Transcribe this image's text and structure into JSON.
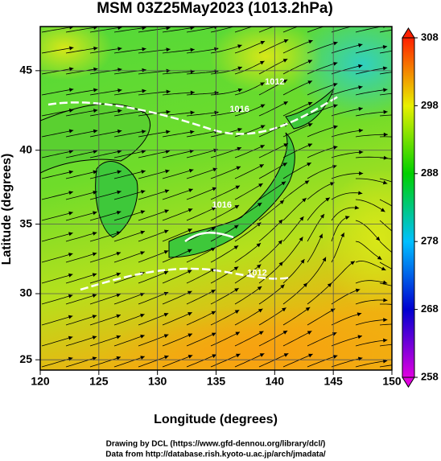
{
  "chart_data": {
    "type": "map",
    "title": "MSM 03Z25May2023 (1013.2hPa)",
    "x_label": "Longitude (degrees)",
    "y_label": "Latitude  (degrees)",
    "projection": "mercator",
    "xlim": [
      120,
      150
    ],
    "xticks": [
      120,
      125,
      130,
      135,
      140,
      145,
      150
    ],
    "ylim": [
      24.2,
      47.6
    ],
    "yticks": [
      25,
      30,
      35,
      40,
      45
    ],
    "grid": true,
    "colorbar": {
      "lim": [
        258,
        308
      ],
      "ticks": [
        258,
        268,
        278,
        288,
        298,
        308
      ],
      "colors": [
        "#e000e0",
        "#0000d0",
        "#00c0ff",
        "#00d000",
        "#e8f000",
        "#ff2000"
      ]
    },
    "contour_labels": [
      {
        "text": "1012",
        "lon": 138.5,
        "lat": 31.5
      },
      {
        "text": "1016",
        "lon": 137,
        "lat": 42.6
      },
      {
        "text": "1012",
        "lon": 140,
        "lat": 44.3
      },
      {
        "text": "1016",
        "lon": 135.5,
        "lat": 36.3
      }
    ],
    "footer": [
      "Drawing by DCL (https://www.gfd-dennou.org/library/dcl/)",
      "Data from http://database.rish.kyoto-u.ac.jp/arch/jmadata/"
    ]
  }
}
